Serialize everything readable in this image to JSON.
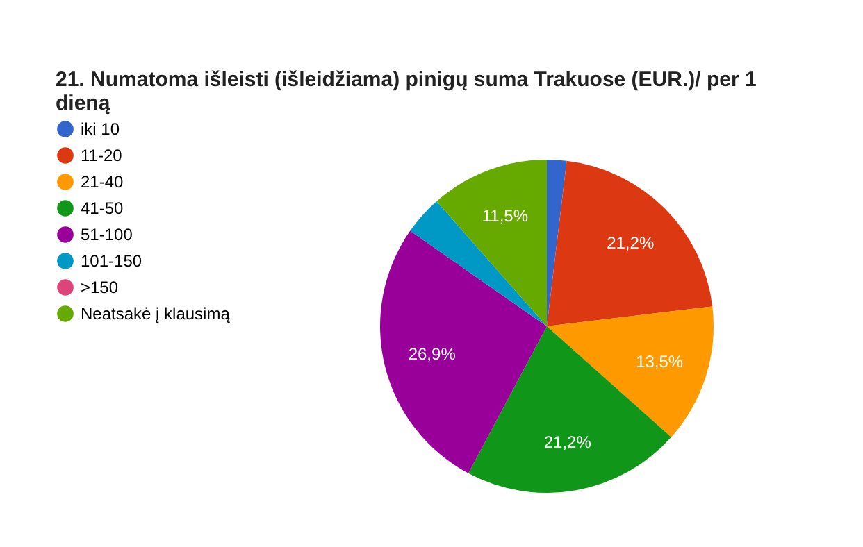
{
  "chart_data": {
    "type": "pie",
    "title": "21. Numatoma išleisti (išleidžiama) pinigų suma Trakuose (EUR.)/ per 1 dieną",
    "categories": [
      "iki 10",
      "11-20",
      "21-40",
      "41-50",
      "51-100",
      "101-150",
      ">150",
      "Neatsakė į klausimą"
    ],
    "values": [
      1.9,
      21.2,
      13.5,
      21.2,
      26.9,
      3.8,
      0,
      11.5
    ],
    "colors": [
      "#3366cc",
      "#dc3912",
      "#ff9900",
      "#109618",
      "#990099",
      "#0099c6",
      "#dd4477",
      "#66aa00"
    ],
    "value_labels": [
      null,
      "21,2%",
      "13,5%",
      "21,2%",
      "26,9%",
      null,
      null,
      "11,5%"
    ],
    "legend": "left"
  }
}
